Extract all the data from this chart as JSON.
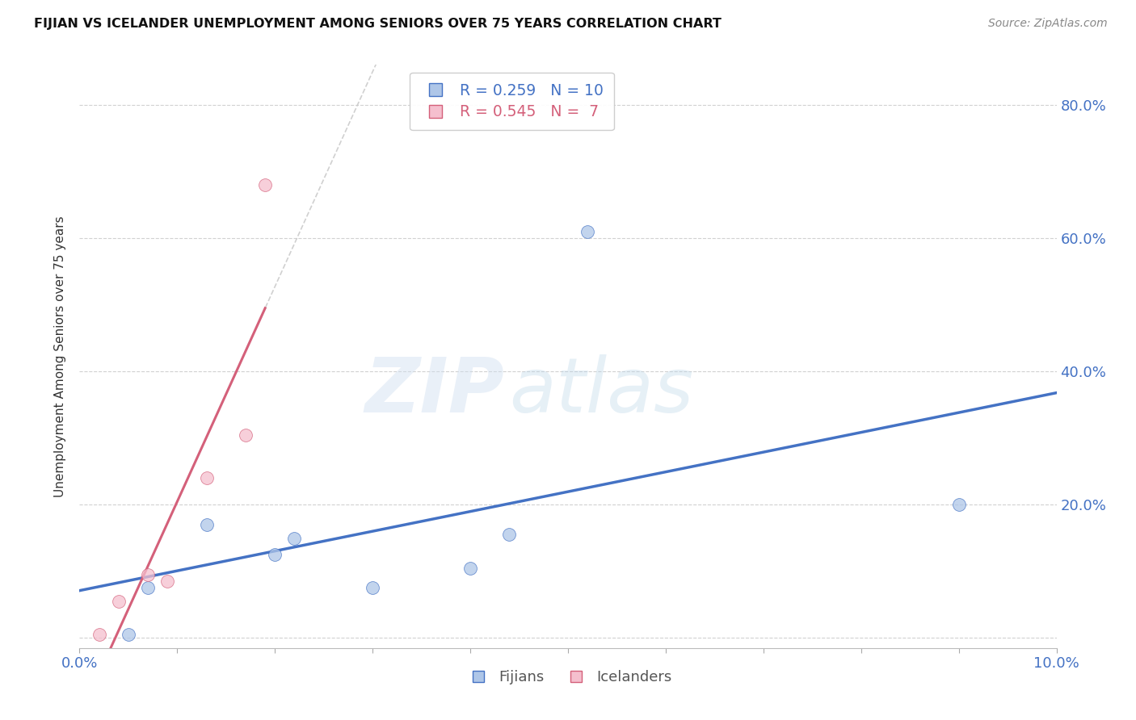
{
  "title": "FIJIAN VS ICELANDER UNEMPLOYMENT AMONG SENIORS OVER 75 YEARS CORRELATION CHART",
  "source": "Source: ZipAtlas.com",
  "ylabel": "Unemployment Among Seniors over 75 years",
  "xmin": 0.0,
  "xmax": 0.1,
  "ymin": -0.015,
  "ymax": 0.86,
  "fijians_x": [
    0.005,
    0.007,
    0.013,
    0.02,
    0.022,
    0.03,
    0.04,
    0.044,
    0.052,
    0.09
  ],
  "fijians_y": [
    0.005,
    0.075,
    0.17,
    0.125,
    0.15,
    0.075,
    0.105,
    0.155,
    0.61,
    0.2
  ],
  "icelanders_x": [
    0.002,
    0.004,
    0.007,
    0.009,
    0.013,
    0.017,
    0.019
  ],
  "icelanders_y": [
    0.005,
    0.055,
    0.095,
    0.085,
    0.24,
    0.305,
    0.68
  ],
  "fijians_color": "#aec6e8",
  "icelanders_color": "#f5bfce",
  "fijians_edge_color": "#4472c4",
  "icelanders_edge_color": "#d4607a",
  "fijians_line_color": "#4472c4",
  "icelanders_line_color": "#d4607a",
  "dashed_color": "#c8c8c8",
  "right_axis_color": "#4472c4",
  "bottom_axis_color": "#4472c4",
  "grid_color": "#cccccc",
  "ytick_vals": [
    0.0,
    0.2,
    0.4,
    0.6,
    0.8
  ],
  "ytick_labels_right": [
    "",
    "20.0%",
    "40.0%",
    "60.0%",
    "80.0%"
  ],
  "xtick_vals": [
    0.0,
    0.01,
    0.02,
    0.03,
    0.04,
    0.05,
    0.06,
    0.07,
    0.08,
    0.09,
    0.1
  ],
  "watermark_zip": "ZIP",
  "watermark_atlas": "atlas",
  "background_color": "#ffffff",
  "legend_fijians_R": "R = 0.259",
  "legend_fijians_N": "N = 10",
  "legend_icelanders_R": "R = 0.545",
  "legend_icelanders_N": "N =  7",
  "marker_size": 130,
  "scatter_alpha": 0.75
}
